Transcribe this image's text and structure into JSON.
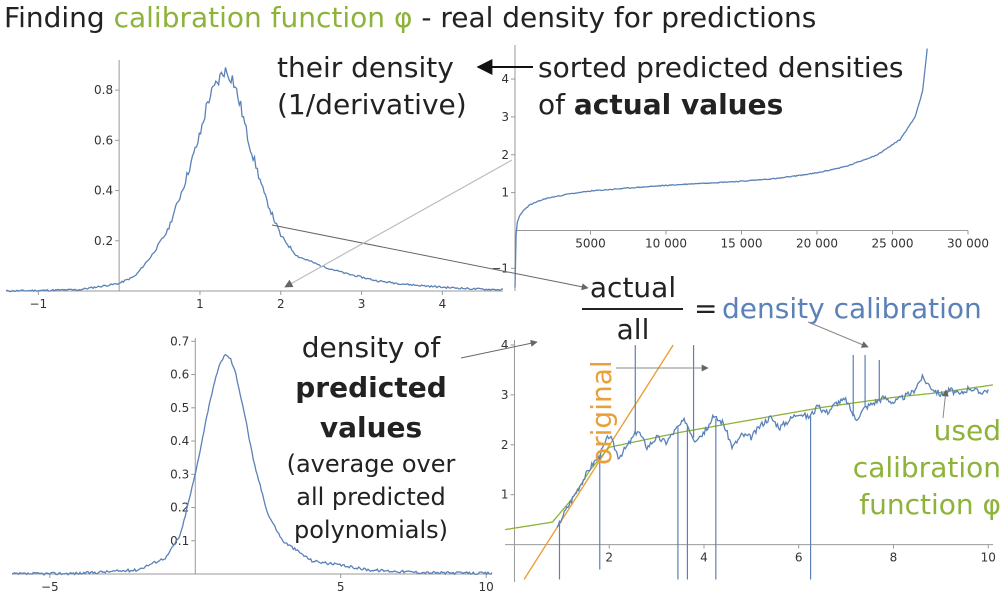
{
  "title": {
    "part1": "Finding ",
    "part2": "calibration function φ",
    "part3": " - real density for predictions"
  },
  "colors": {
    "blue": "#5b82b8",
    "green": "#8db33a",
    "orange": "#e8a13a",
    "axis": "#9a9a9a",
    "arrow": "#666666"
  },
  "annotations": {
    "their_density_1": "their density",
    "their_density_2": "(1/derivative)",
    "sorted_1": "sorted predicted densities",
    "sorted_2_prefix": "of ",
    "sorted_2_bold": "actual values",
    "fraction_num": "actual",
    "fraction_den": "all",
    "equals": "=",
    "density_calibration": "density calibration",
    "density_of": "density of",
    "predicted": "predicted",
    "values": "values",
    "avg_1": "(average over",
    "avg_2": "all predicted",
    "avg_3": "polynomials)",
    "original": "original",
    "used_1": "used",
    "used_2": "calibration",
    "used_3": "function φ"
  },
  "chart_data": [
    {
      "id": "actual-density",
      "type": "line",
      "xlim": [
        -1.4,
        4.75
      ],
      "ylim": [
        0,
        0.92
      ],
      "xticks": [
        -1,
        1,
        2,
        3,
        4
      ],
      "xtick_labels": [
        "−1",
        "1",
        "2",
        "3",
        "4"
      ],
      "yticks": [
        0.2,
        0.4,
        0.6,
        0.8
      ],
      "ytick_labels": [
        "0.2",
        "0.4",
        "0.6",
        "0.8"
      ],
      "series": [
        {
          "color": "#5b82b8",
          "x": [
            -1.4,
            -1.0,
            -0.5,
            0.0,
            0.2,
            0.4,
            0.6,
            0.8,
            1.0,
            1.1,
            1.2,
            1.3,
            1.4,
            1.5,
            1.6,
            1.8,
            2.0,
            2.2,
            2.5,
            2.8,
            3.2,
            3.6,
            4.0,
            4.4,
            4.75
          ],
          "y": [
            0.0,
            0.002,
            0.005,
            0.03,
            0.06,
            0.14,
            0.24,
            0.42,
            0.62,
            0.76,
            0.82,
            0.88,
            0.85,
            0.74,
            0.6,
            0.38,
            0.22,
            0.14,
            0.1,
            0.07,
            0.04,
            0.025,
            0.015,
            0.008,
            0.005
          ]
        }
      ]
    },
    {
      "id": "sorted-densities",
      "type": "line",
      "xlim": [
        0,
        30000
      ],
      "ylim": [
        -1.6,
        4.9
      ],
      "xticks": [
        5000,
        10000,
        15000,
        20000,
        25000,
        30000
      ],
      "xtick_labels": [
        "5000",
        "10 000",
        "15 000",
        "20 000",
        "25 000",
        "30 000"
      ],
      "yticks": [
        -1,
        1,
        2,
        3,
        4
      ],
      "ytick_labels": [
        "−1",
        "1",
        "2",
        "3",
        "4"
      ],
      "series": [
        {
          "color": "#5b82b8",
          "x": [
            0,
            20,
            60,
            150,
            300,
            600,
            1000,
            2000,
            3500,
            5000,
            7500,
            10000,
            12500,
            15000,
            17500,
            20000,
            22000,
            24000,
            25500,
            26500,
            27000,
            27300
          ],
          "y": [
            -1.5,
            -0.9,
            -0.2,
            0.2,
            0.38,
            0.55,
            0.68,
            0.84,
            0.96,
            1.04,
            1.12,
            1.19,
            1.25,
            1.3,
            1.38,
            1.52,
            1.7,
            2.0,
            2.4,
            3.0,
            3.7,
            4.8
          ]
        }
      ]
    },
    {
      "id": "predicted-density",
      "type": "line",
      "xlim": [
        -6.3,
        10.2
      ],
      "ylim": [
        0,
        0.71
      ],
      "xticks": [
        -5,
        5,
        10
      ],
      "xtick_labels": [
        "−5",
        "5",
        "10"
      ],
      "yticks": [
        0.1,
        0.2,
        0.3,
        0.4,
        0.5,
        0.6,
        0.7
      ],
      "ytick_labels": [
        "0.1",
        "0.2",
        "0.3",
        "0.4",
        "0.5",
        "0.6",
        "0.7"
      ],
      "series": [
        {
          "color": "#5b82b8",
          "x": [
            -6.3,
            -4,
            -2,
            -1,
            -0.5,
            0,
            0.5,
            0.8,
            1.0,
            1.2,
            1.4,
            1.7,
            2.0,
            2.5,
            3.0,
            4.0,
            6.0,
            8.0,
            10.2
          ],
          "y": [
            0.0,
            0.002,
            0.012,
            0.05,
            0.12,
            0.3,
            0.52,
            0.62,
            0.66,
            0.65,
            0.6,
            0.48,
            0.34,
            0.18,
            0.1,
            0.04,
            0.012,
            0.004,
            0.002
          ]
        }
      ]
    },
    {
      "id": "density-calibration",
      "type": "line",
      "xlim": [
        -0.2,
        10.1
      ],
      "ylim": [
        -0.75,
        4.1
      ],
      "xticks": [
        2,
        4,
        6,
        8,
        10
      ],
      "xtick_labels": [
        "2",
        "4",
        "6",
        "8",
        "10"
      ],
      "yticks": [
        1,
        2,
        3,
        4
      ],
      "ytick_labels": [
        "1",
        "2",
        "3",
        "4"
      ],
      "series": [
        {
          "name": "original",
          "color": "#e8a13a",
          "x": [
            0.2,
            3.35
          ],
          "y": [
            -0.7,
            4.0
          ]
        },
        {
          "name": "used calibration function φ",
          "color": "#8db33a",
          "x": [
            -0.2,
            0.8,
            1.2,
            1.6,
            2.0,
            2.5,
            3.5,
            5.0,
            6.5,
            8.0,
            9.0,
            10.1
          ],
          "y": [
            0.3,
            0.45,
            0.9,
            1.5,
            1.95,
            2.05,
            2.25,
            2.5,
            2.75,
            2.95,
            3.05,
            3.2
          ]
        },
        {
          "name": "density calibration",
          "color": "#5b82b8",
          "x": [
            0.9,
            1.0,
            1.3,
            1.6,
            1.8,
            2.0,
            2.2,
            2.4,
            2.6,
            2.8,
            3.0,
            3.2,
            3.4,
            3.6,
            3.8,
            4.0,
            4.2,
            4.4,
            4.6,
            4.8,
            5.0,
            5.2,
            5.4,
            5.6,
            5.8,
            6.0,
            6.2,
            6.4,
            6.6,
            6.8,
            7.0,
            7.2,
            7.4,
            7.6,
            7.8,
            8.0,
            8.2,
            8.4,
            8.6,
            8.8,
            9.0,
            9.2,
            9.4,
            9.6,
            9.8,
            10.0
          ],
          "y": [
            0.3,
            0.55,
            1.05,
            1.55,
            1.8,
            2.2,
            1.75,
            2.0,
            2.3,
            1.95,
            2.15,
            2.05,
            2.3,
            2.5,
            2.1,
            2.25,
            2.55,
            2.45,
            1.95,
            2.2,
            2.15,
            2.4,
            2.55,
            2.35,
            2.5,
            2.65,
            2.55,
            2.75,
            2.65,
            2.85,
            2.9,
            2.5,
            2.75,
            2.85,
            2.95,
            2.85,
            2.95,
            3.05,
            3.35,
            3.15,
            3.0,
            3.1,
            3.0,
            3.15,
            3.05,
            3.1
          ]
        }
      ]
    }
  ]
}
